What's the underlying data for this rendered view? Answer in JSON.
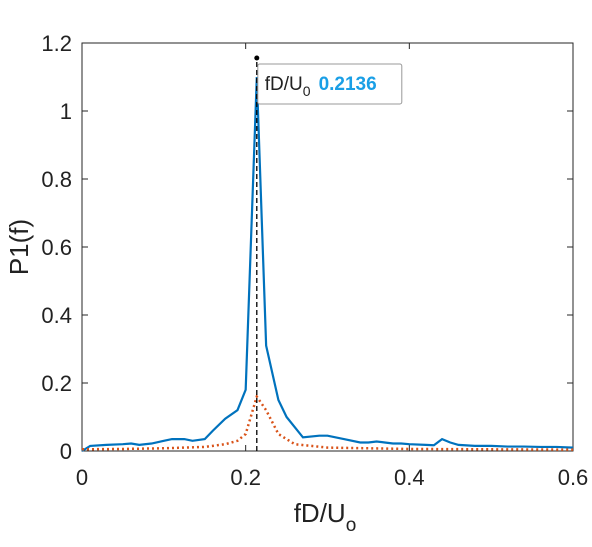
{
  "chart_data": {
    "type": "line",
    "xlabel": "fD/U",
    "xlabel_sub": "o",
    "ylabel": "P1(f)",
    "xlim": [
      0,
      0.6
    ],
    "xticks": [
      0,
      0.2,
      0.4,
      0.6
    ],
    "ylim": [
      0,
      1.2
    ],
    "yticks": [
      0,
      0.2,
      0.4,
      0.6,
      0.8,
      1,
      1.2
    ],
    "series": [
      {
        "color": "#0072BD",
        "style": "solid",
        "x": [
          0,
          0.01,
          0.03,
          0.05,
          0.06,
          0.07,
          0.085,
          0.1,
          0.11,
          0.125,
          0.135,
          0.15,
          0.16,
          0.175,
          0.19,
          0.2,
          0.2136,
          0.225,
          0.24,
          0.25,
          0.26,
          0.27,
          0.29,
          0.3,
          0.32,
          0.34,
          0.35,
          0.36,
          0.37,
          0.38,
          0.39,
          0.4,
          0.42,
          0.43,
          0.44,
          0.45,
          0.46,
          0.48,
          0.5,
          0.52,
          0.54,
          0.56,
          0.58,
          0.6
        ],
        "values": [
          0,
          0.015,
          0.018,
          0.02,
          0.022,
          0.018,
          0.022,
          0.03,
          0.035,
          0.035,
          0.03,
          0.035,
          0.06,
          0.095,
          0.12,
          0.18,
          1.1,
          0.31,
          0.15,
          0.1,
          0.07,
          0.04,
          0.045,
          0.045,
          0.035,
          0.025,
          0.025,
          0.028,
          0.025,
          0.022,
          0.022,
          0.02,
          0.018,
          0.017,
          0.035,
          0.025,
          0.018,
          0.015,
          0.015,
          0.013,
          0.013,
          0.012,
          0.012,
          0.01
        ]
      },
      {
        "color": "#D95319",
        "style": "dotted",
        "x": [
          0,
          0.05,
          0.1,
          0.15,
          0.175,
          0.19,
          0.2,
          0.2136,
          0.225,
          0.24,
          0.26,
          0.3,
          0.4,
          0.5,
          0.6
        ],
        "values": [
          0.005,
          0.006,
          0.008,
          0.012,
          0.02,
          0.03,
          0.05,
          0.16,
          0.12,
          0.05,
          0.02,
          0.01,
          0.006,
          0.005,
          0.004
        ]
      }
    ],
    "datatip": {
      "label": "fD/U",
      "label_sub": "0",
      "x": 0.2136
    }
  }
}
